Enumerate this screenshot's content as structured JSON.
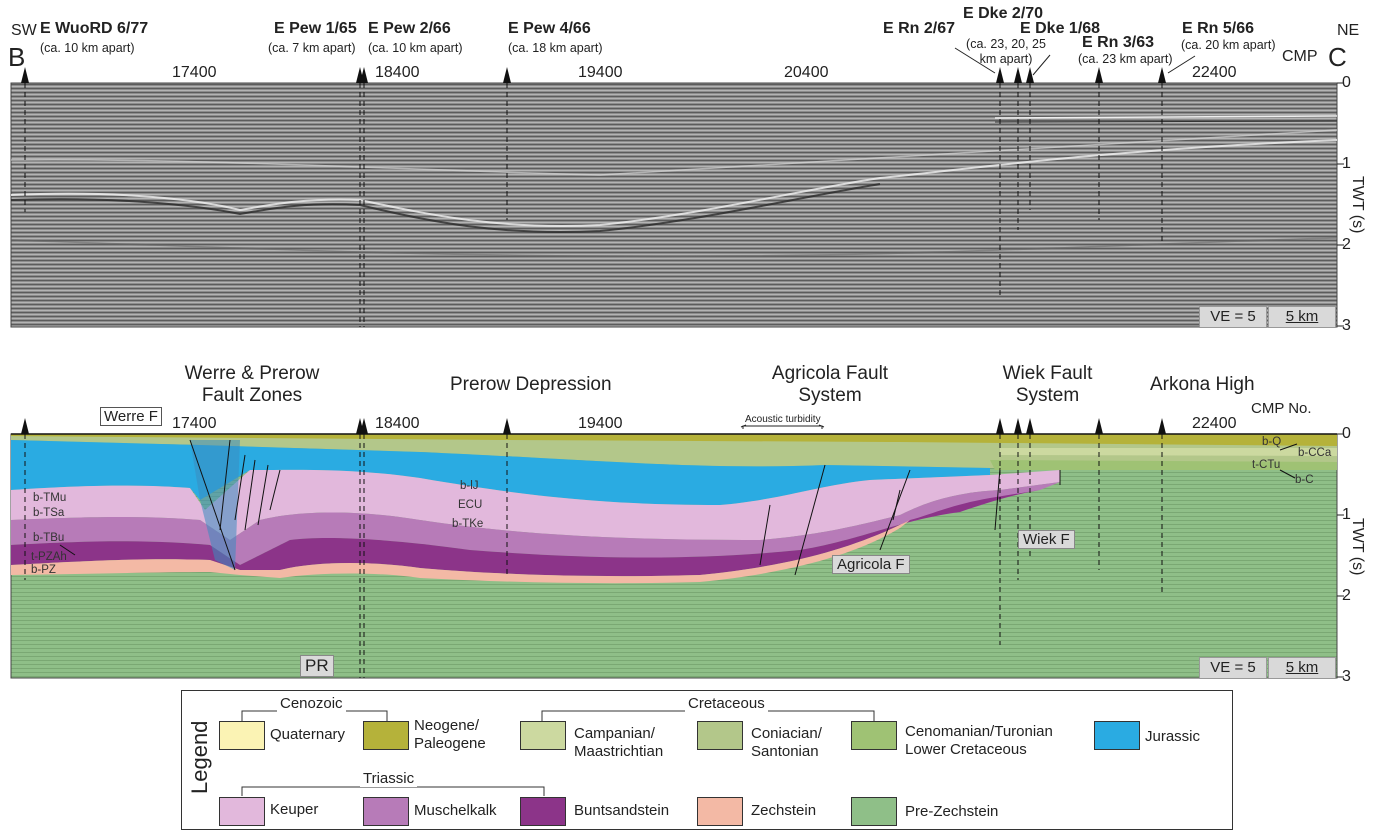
{
  "top_panel": {
    "corner_left": {
      "dir": "SW",
      "letter": "B"
    },
    "corner_right": {
      "dir": "NE",
      "letter": "C",
      "axis_tag": "CMP"
    },
    "wells": [
      {
        "name": "E WuoRD 6/77",
        "note": "(ca. 10 km apart)"
      },
      {
        "name": "E Pew 1/65",
        "note": "(ca. 7 km apart)"
      },
      {
        "name": "E Pew 2/66",
        "note": "(ca. 10 km apart)"
      },
      {
        "name": "E Pew 4/66",
        "note": "(ca. 18 km apart)"
      },
      {
        "name": "E Rn 2/67",
        "note": ""
      },
      {
        "name": "E Dke 2/70",
        "note": "(ca. 23, 20, 25 km apart)"
      },
      {
        "name": "E Dke 1/68",
        "note": ""
      },
      {
        "name": "E Rn 3/63",
        "note": "(ca. 23 km apart)"
      },
      {
        "name": "E Rn 5/66",
        "note": "(ca. 20 km apart)"
      }
    ],
    "cmp_ticks": [
      "17400",
      "18400",
      "19400",
      "20400",
      "22400"
    ],
    "twt_ticks": [
      "0",
      "1",
      "2",
      "3"
    ],
    "twt_label": "TWT (s)",
    "ve": "VE = 5",
    "scale": "5 km"
  },
  "bottom_panel": {
    "titles": [
      "Werre & Prerow Fault Zones",
      "Prerow Depression",
      "Agricola Fault System",
      "Wiek Fault System",
      "Arkona High"
    ],
    "cmp_ticks": [
      "17400",
      "18400",
      "19400",
      "22400"
    ],
    "cmp_label": "CMP No.",
    "acoustic": "Acoustic turbidity",
    "fault_labels": [
      "Werre F",
      "Agricola F",
      "Wiek F",
      "PR"
    ],
    "horizons_left": [
      "b-TMu",
      "b-TSa",
      "b-TBu",
      "t-PZAh",
      "b-PZ"
    ],
    "horizons_center": [
      "b-lJ",
      "ECU",
      "b-TKe"
    ],
    "horizons_right": [
      "b-Q",
      "b-CCa",
      "t-CTu",
      "b-C"
    ],
    "twt_ticks": [
      "0",
      "1",
      "2",
      "3"
    ],
    "twt_label": "TWT (s)",
    "ve": "VE = 5",
    "scale": "5 km"
  },
  "legend": {
    "title": "Legend",
    "eras": [
      "Cenozoic",
      "Cretaceous",
      "Triassic"
    ],
    "items": [
      {
        "label": "Quaternary",
        "color": "#fbf3b4"
      },
      {
        "label": "Neogene/\nPaleogene",
        "color": "#b5b23a"
      },
      {
        "label": "Campanian/\nMaastrichtian",
        "color": "#ccd9a0"
      },
      {
        "label": "Coniacian/\nSantonian",
        "color": "#b3c78a"
      },
      {
        "label": "Cenomanian/Turonian\nLower Cretaceous",
        "color": "#9fc274"
      },
      {
        "label": "Jurassic",
        "color": "#2aabe2"
      },
      {
        "label": "Keuper",
        "color": "#e2b8dc"
      },
      {
        "label": "Muschelkalk",
        "color": "#b77bb8"
      },
      {
        "label": "Buntsandstein",
        "color": "#8c3489"
      },
      {
        "label": "Zechstein",
        "color": "#f3b9a5"
      },
      {
        "label": "Pre-Zechstein",
        "color": "#8fbf88"
      }
    ]
  }
}
